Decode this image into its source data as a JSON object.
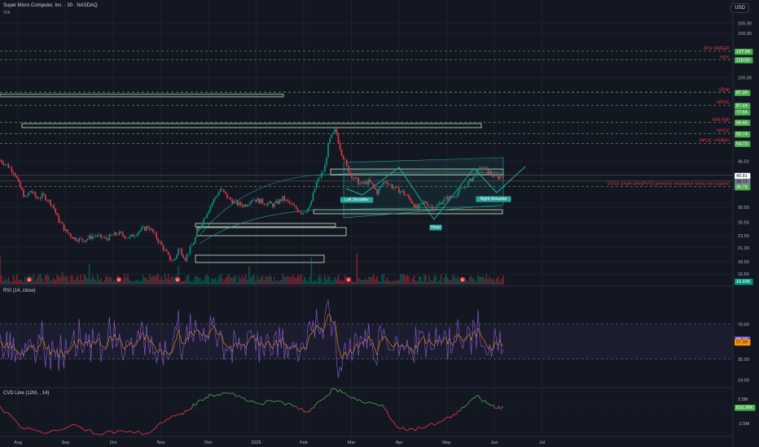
{
  "header": {
    "symbol_line": "Super Micro Computer, Inc. · 30 · NASDAQ",
    "vol_label": "Vol",
    "currency_button": "USD"
  },
  "chart_data": {
    "type": "candlestick",
    "title": "Super Micro Computer, Inc. · 30 · NASDAQ",
    "price_axis": {
      "scale": "log",
      "range": [
        15.0,
        195.0
      ],
      "ticks": [
        165.0,
        150.0,
        100.0,
        46.5,
        30.5,
        26.55,
        23.5,
        21.0,
        18.5,
        16.5
      ]
    },
    "x_axis": {
      "ticks": [
        "Aug",
        "Sep",
        "Oct",
        "Nov",
        "Dec",
        "2025",
        "Feb",
        "Mar",
        "Apr",
        "May",
        "Jun",
        "Jul"
      ]
    },
    "price_path": [
      [
        "2024-07-23",
        47.0
      ],
      [
        "2024-07-28",
        44.5
      ],
      [
        "2024-08-01",
        42.0
      ],
      [
        "2024-08-04",
        37.0
      ],
      [
        "2024-08-08",
        33.0
      ],
      [
        "2024-08-11",
        35.5
      ],
      [
        "2024-08-15",
        33.0
      ],
      [
        "2024-08-19",
        34.0
      ],
      [
        "2024-08-25",
        31.0
      ],
      [
        "2024-08-28",
        27.5
      ],
      [
        "2024-09-02",
        24.5
      ],
      [
        "2024-09-07",
        23.0
      ],
      [
        "2024-09-13",
        22.5
      ],
      [
        "2024-09-20",
        23.5
      ],
      [
        "2024-09-27",
        22.8
      ],
      [
        "2024-10-05",
        24.0
      ],
      [
        "2024-10-12",
        23.0
      ],
      [
        "2024-10-18",
        24.5
      ],
      [
        "2024-10-24",
        25.5
      ],
      [
        "2024-10-29",
        23.0
      ],
      [
        "2024-11-02",
        21.0
      ],
      [
        "2024-11-06",
        19.0
      ],
      [
        "2024-11-09",
        18.6
      ],
      [
        "2024-11-12",
        21.0
      ],
      [
        "2024-11-16",
        19.0
      ],
      [
        "2024-11-21",
        22.0
      ],
      [
        "2024-11-27",
        27.0
      ],
      [
        "2024-12-03",
        32.0
      ],
      [
        "2024-12-08",
        36.0
      ],
      [
        "2024-12-13",
        33.0
      ],
      [
        "2024-12-18",
        31.5
      ],
      [
        "2024-12-23",
        31.0
      ],
      [
        "2024-12-28",
        33.0
      ],
      [
        "2025-01-03",
        32.0
      ],
      [
        "2025-01-10",
        31.0
      ],
      [
        "2025-01-16",
        33.0
      ],
      [
        "2025-01-23",
        30.5
      ],
      [
        "2025-01-28",
        29.0
      ],
      [
        "2025-02-02",
        30.5
      ],
      [
        "2025-02-06",
        38.0
      ],
      [
        "2025-02-11",
        43.0
      ],
      [
        "2025-02-14",
        56.0
      ],
      [
        "2025-02-18",
        62.0
      ],
      [
        "2025-02-21",
        52.0
      ],
      [
        "2025-02-25",
        44.0
      ],
      [
        "2025-03-01",
        40.0
      ],
      [
        "2025-03-06",
        37.5
      ],
      [
        "2025-03-11",
        38.5
      ],
      [
        "2025-03-16",
        35.0
      ],
      [
        "2025-03-21",
        39.0
      ],
      [
        "2025-03-26",
        36.5
      ],
      [
        "2025-04-01",
        35.0
      ],
      [
        "2025-04-06",
        32.5
      ],
      [
        "2025-04-10",
        30.0
      ],
      [
        "2025-04-15",
        32.0
      ],
      [
        "2025-04-21",
        30.0
      ],
      [
        "2025-04-26",
        32.5
      ],
      [
        "2025-05-02",
        33.5
      ],
      [
        "2025-05-07",
        35.5
      ],
      [
        "2025-05-12",
        38.0
      ],
      [
        "2025-05-16",
        41.0
      ],
      [
        "2025-05-21",
        44.0
      ],
      [
        "2025-05-26",
        41.5
      ],
      [
        "2025-05-30",
        40.0
      ],
      [
        "2025-06-03",
        40.8
      ]
    ],
    "horizontal_levels": [
      {
        "label": "ATH SWEEP",
        "value": 127.54,
        "price_tag": "127.54",
        "color": "#4caf50"
      },
      {
        "label": "npoc",
        "value": 118.03,
        "price_tag": "118.03",
        "color": "#4caf50"
      },
      {
        "label": "r@ap",
        "value": 87.39,
        "price_tag": "87.39",
        "color": "#4caf50"
      },
      {
        "label": "",
        "value": 87.44,
        "price_tag": "87.44",
        "color": "#4caf50"
      },
      {
        "label": "NPOC",
        "value": 77.55,
        "price_tag": "77.55",
        "color": "#4caf50"
      },
      {
        "label": "bad high",
        "value": 66.46,
        "price_tag": "66.46",
        "color": "#4caf50"
      },
      {
        "label": "NPOC",
        "value": 59.74,
        "price_tag": "59.74",
        "color": "#4caf50"
      },
      {
        "label": "NPOC +FIBBO",
        "value": 54.73,
        "price_tag": "54.73",
        "color": "#4caf50"
      },
      {
        "label": "0.618 single print(FVG) previous resistance turns into support",
        "value": 36.78,
        "price_tag": "36.78",
        "color": "#4caf50"
      }
    ],
    "price_tags": [
      {
        "text": "40.81",
        "value": 40.81,
        "color": "#ffffff"
      },
      {
        "text": "38.72",
        "value": 38.72,
        "color": "#787b86"
      }
    ],
    "pattern_labels": [
      "Left Shoulder",
      "Head",
      "Right Shoulder"
    ],
    "event_marker": "E",
    "volume": {
      "last_label": "16.65K"
    },
    "rsi": {
      "label": "RSI (14, close)",
      "range": [
        8,
        100
      ],
      "ticks": [
        70.0,
        35.0,
        14.0
      ],
      "last_value": 55.16,
      "signal_value": 57.09,
      "band": [
        35,
        70
      ]
    },
    "cvd": {
      "label": "CVD Line (12M, , 14)",
      "ticks": [
        "2.5M",
        "-2.5M"
      ],
      "last_value": "616.26K"
    },
    "colors": {
      "up": "#089981",
      "down": "#f23645",
      "level": "#4caf50",
      "label_text": "#f23645",
      "box_outline": "#c8e6c9",
      "channel": "#26a69a",
      "rsi_line": "#7e57c2",
      "rsi_signal": "#ff9800",
      "cvd_up": "#4caf50",
      "cvd_down": "#f23645",
      "price_line": "#e8853d"
    }
  }
}
